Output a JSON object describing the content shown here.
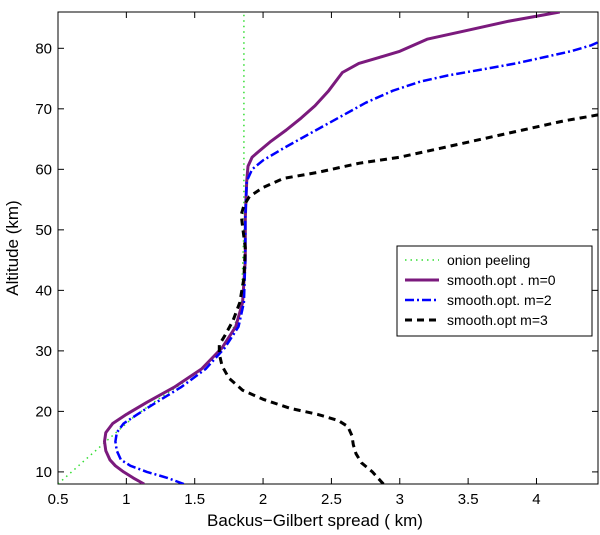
{
  "chart_data": {
    "type": "line",
    "title": "",
    "xlabel": "Backus−Gilbert spread ( km)",
    "ylabel": "Altitude (km)",
    "xlim": [
      0.5,
      4.45
    ],
    "ylim": [
      8,
      86
    ],
    "xticks": [
      0.5,
      1,
      1.5,
      2,
      2.5,
      3,
      3.5,
      4
    ],
    "xtick_labels": [
      "0.5",
      "1",
      "1.5",
      "2",
      "2.5",
      "3",
      "3.5",
      "4"
    ],
    "yticks": [
      10,
      20,
      30,
      40,
      50,
      60,
      70,
      80
    ],
    "ytick_labels": [
      "10",
      "20",
      "30",
      "40",
      "50",
      "60",
      "70",
      "80"
    ],
    "grid": false,
    "legend_position": "center-right",
    "series": [
      {
        "name": "onion peeling",
        "color": "#33dd33",
        "style": "dotted",
        "x": [
          0.5,
          0.55,
          0.65,
          0.75,
          0.85,
          0.95,
          1.05,
          1.2,
          1.4,
          1.6,
          1.75,
          1.84,
          1.86,
          1.86
        ],
        "y": [
          8,
          9,
          11,
          13,
          15,
          17,
          19,
          21.5,
          24.5,
          28,
          32,
          37,
          50,
          86
        ]
      },
      {
        "name": "smooth.opt . m=0",
        "color": "#7b1a7d",
        "style": "solid",
        "x": [
          1.13,
          1.05,
          0.98,
          0.92,
          0.88,
          0.85,
          0.84,
          0.85,
          0.9,
          1.0,
          1.15,
          1.35,
          1.55,
          1.7,
          1.8,
          1.85,
          1.87,
          1.87,
          1.88,
          1.89,
          1.92,
          1.97,
          2.05,
          2.17,
          2.28,
          2.38,
          2.48,
          2.58,
          2.7,
          2.85,
          3.0,
          3.2,
          3.5,
          3.8,
          4.05,
          4.17
        ],
        "y": [
          8,
          9,
          10,
          11,
          12,
          13.5,
          15,
          16.5,
          18,
          19.5,
          21.5,
          24,
          27,
          30.5,
          34,
          38,
          45,
          52,
          58,
          60.5,
          62,
          63,
          64.5,
          66.5,
          68.5,
          70.5,
          73,
          76,
          77.5,
          78.5,
          79.5,
          81.5,
          83,
          84.5,
          85.5,
          86
        ]
      },
      {
        "name": "smooth.opt. m=2",
        "color": "#0000ff",
        "style": "dashdot",
        "x": [
          1.42,
          1.3,
          1.15,
          1.03,
          0.96,
          0.93,
          0.92,
          0.93,
          0.98,
          1.08,
          1.22,
          1.4,
          1.58,
          1.72,
          1.82,
          1.86,
          1.87,
          1.87,
          1.88,
          1.92,
          2.0,
          2.15,
          2.35,
          2.55,
          2.75,
          2.95,
          3.15,
          3.35,
          3.6,
          3.85,
          4.05,
          4.25,
          4.4,
          4.45
        ],
        "y": [
          8,
          9,
          10,
          11,
          12,
          13.5,
          15,
          16.5,
          18,
          19.5,
          21.5,
          24,
          27,
          30.5,
          34,
          38,
          45,
          52,
          58,
          60,
          61.5,
          63.5,
          66,
          68.5,
          71,
          73,
          74.5,
          75.5,
          76.5,
          77.5,
          78.5,
          79.5,
          80.5,
          81
        ]
      },
      {
        "name": "smooth.opt  m=3",
        "color": "#000000",
        "style": "dashed",
        "x": [
          2.88,
          2.8,
          2.72,
          2.68,
          2.66,
          2.65,
          2.62,
          2.55,
          2.4,
          2.2,
          2.0,
          1.85,
          1.75,
          1.7,
          1.68,
          1.68,
          1.72,
          1.78,
          1.83,
          1.86,
          1.87,
          1.85,
          1.84,
          1.86,
          1.9,
          2.0,
          2.15,
          2.4,
          2.7,
          3.0,
          3.3,
          3.6,
          3.9,
          4.2,
          4.45
        ],
        "y": [
          8,
          10,
          11.5,
          13,
          14.5,
          16,
          17.5,
          18.5,
          19.5,
          20.5,
          22,
          23.5,
          25.5,
          27.5,
          29.5,
          31,
          32.5,
          35,
          38,
          42,
          47,
          50.5,
          52.5,
          54,
          55.5,
          57,
          58.5,
          59.5,
          61,
          62,
          63.5,
          65,
          66.5,
          68,
          69
        ]
      }
    ]
  }
}
